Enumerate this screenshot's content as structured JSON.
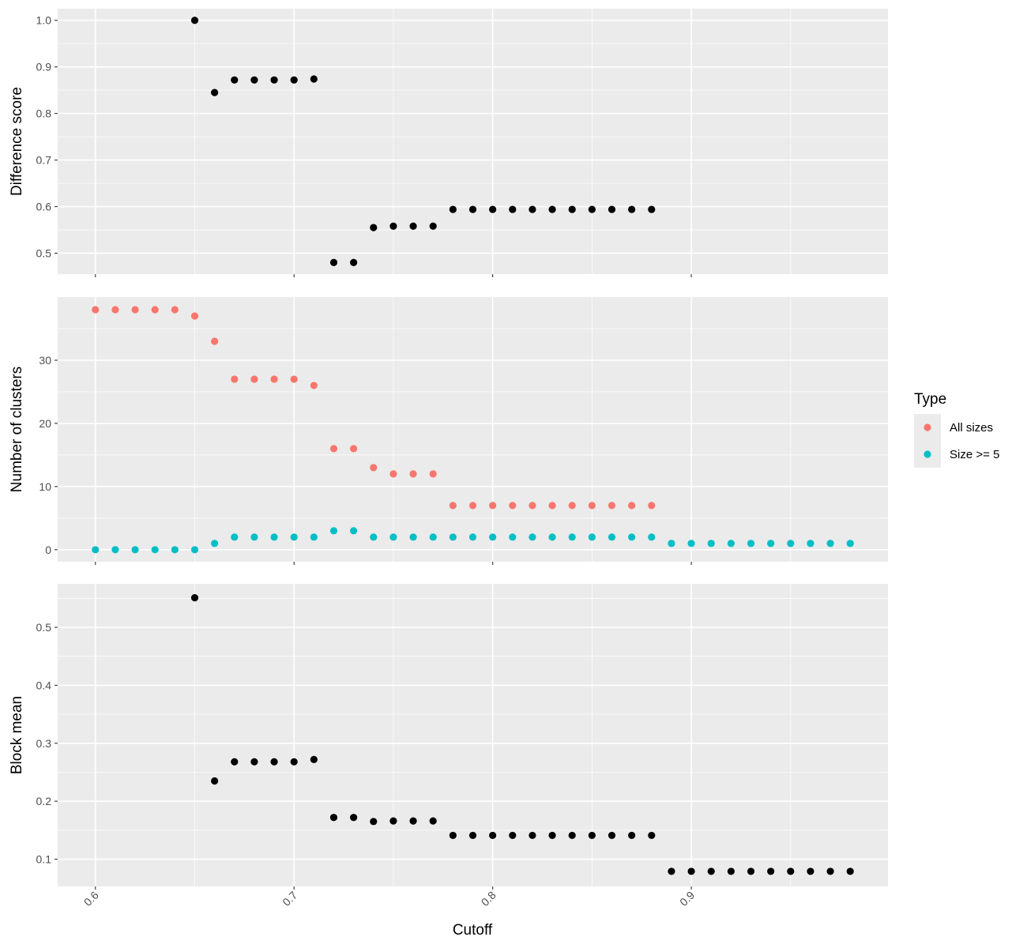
{
  "chart_data": {
    "type": "scatter",
    "xlabel": "Cutoff",
    "xlim": [
      0.581,
      0.999
    ],
    "xticks": [
      0.6,
      0.7,
      0.8,
      0.9
    ],
    "xtick_labels": [
      "0.6",
      "0.7",
      "0.8",
      "0.9"
    ],
    "grid": true,
    "panel_background": "#EBEBEB",
    "legend": {
      "title": "Type",
      "placement": "right",
      "entries": [
        {
          "label": "All sizes",
          "color": "#F8766D"
        },
        {
          "label": "Size >= 5",
          "color": "#00BFC4"
        }
      ]
    },
    "panels": [
      {
        "ylabel": "Difference score",
        "ylim": [
          0.455,
          1.025
        ],
        "yticks": [
          0.5,
          0.6,
          0.7,
          0.8,
          0.9,
          1.0
        ],
        "ytick_labels": [
          "0.5",
          "0.6",
          "0.7",
          "0.8",
          "0.9",
          "1.0"
        ],
        "series": [
          {
            "color": "#000000",
            "x": [
              0.65,
              0.66,
              0.67,
              0.68,
              0.69,
              0.7,
              0.71,
              0.72,
              0.73,
              0.74,
              0.75,
              0.76,
              0.77,
              0.78,
              0.79,
              0.8,
              0.81,
              0.82,
              0.83,
              0.84,
              0.85,
              0.86,
              0.87,
              0.88
            ],
            "y": [
              1.0,
              0.845,
              0.872,
              0.872,
              0.872,
              0.872,
              0.874,
              0.48,
              0.48,
              0.555,
              0.558,
              0.558,
              0.558,
              0.594,
              0.594,
              0.594,
              0.594,
              0.594,
              0.594,
              0.594,
              0.594,
              0.594,
              0.594,
              0.594
            ]
          }
        ]
      },
      {
        "ylabel": "Number of clusters",
        "ylim": [
          -1.9,
          40
        ],
        "yticks": [
          0,
          10,
          20,
          30
        ],
        "ytick_labels": [
          "0",
          "10",
          "20",
          "30"
        ],
        "series": [
          {
            "name": "All sizes",
            "color": "#F8766D",
            "x": [
              0.6,
              0.61,
              0.62,
              0.63,
              0.64,
              0.65,
              0.66,
              0.67,
              0.68,
              0.69,
              0.7,
              0.71,
              0.72,
              0.73,
              0.74,
              0.75,
              0.76,
              0.77,
              0.78,
              0.79,
              0.8,
              0.81,
              0.82,
              0.83,
              0.84,
              0.85,
              0.86,
              0.87,
              0.88
            ],
            "y": [
              38,
              38,
              38,
              38,
              38,
              37,
              33,
              27,
              27,
              27,
              27,
              26,
              16,
              16,
              13,
              12,
              12,
              12,
              7,
              7,
              7,
              7,
              7,
              7,
              7,
              7,
              7,
              7,
              7
            ]
          },
          {
            "name": "Size >= 5",
            "color": "#00BFC4",
            "x": [
              0.6,
              0.61,
              0.62,
              0.63,
              0.64,
              0.65,
              0.66,
              0.67,
              0.68,
              0.69,
              0.7,
              0.71,
              0.72,
              0.73,
              0.74,
              0.75,
              0.76,
              0.77,
              0.78,
              0.79,
              0.8,
              0.81,
              0.82,
              0.83,
              0.84,
              0.85,
              0.86,
              0.87,
              0.88,
              0.89,
              0.9,
              0.91,
              0.92,
              0.93,
              0.94,
              0.95,
              0.96,
              0.97,
              0.98
            ],
            "y": [
              0,
              0,
              0,
              0,
              0,
              0,
              1,
              2,
              2,
              2,
              2,
              2,
              3,
              3,
              2,
              2,
              2,
              2,
              2,
              2,
              2,
              2,
              2,
              2,
              2,
              2,
              2,
              2,
              2,
              1,
              1,
              1,
              1,
              1,
              1,
              1,
              1,
              1,
              1
            ]
          }
        ]
      },
      {
        "ylabel": "Block mean",
        "ylim": [
          0.053,
          0.575
        ],
        "yticks": [
          0.1,
          0.2,
          0.3,
          0.4,
          0.5
        ],
        "ytick_labels": [
          "0.1",
          "0.2",
          "0.3",
          "0.4",
          "0.5"
        ],
        "series": [
          {
            "color": "#000000",
            "x": [
              0.65,
              0.66,
              0.67,
              0.68,
              0.69,
              0.7,
              0.71,
              0.72,
              0.73,
              0.74,
              0.75,
              0.76,
              0.77,
              0.78,
              0.79,
              0.8,
              0.81,
              0.82,
              0.83,
              0.84,
              0.85,
              0.86,
              0.87,
              0.88,
              0.89,
              0.9,
              0.91,
              0.92,
              0.93,
              0.94,
              0.95,
              0.96,
              0.97,
              0.98
            ],
            "y": [
              0.551,
              0.235,
              0.268,
              0.268,
              0.268,
              0.268,
              0.272,
              0.172,
              0.172,
              0.165,
              0.166,
              0.166,
              0.166,
              0.141,
              0.141,
              0.141,
              0.141,
              0.141,
              0.141,
              0.141,
              0.141,
              0.141,
              0.141,
              0.141,
              0.079,
              0.079,
              0.079,
              0.079,
              0.079,
              0.079,
              0.079,
              0.079,
              0.079,
              0.079
            ]
          }
        ]
      }
    ]
  }
}
